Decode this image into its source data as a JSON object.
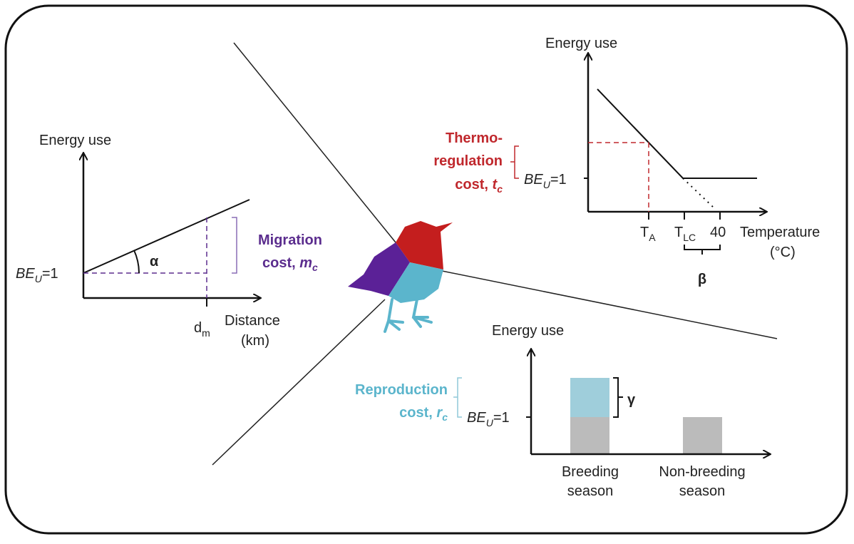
{
  "migration": {
    "y_label": "Energy use",
    "baseline": {
      "be": "BE",
      "sub": "U",
      "eq": "=1"
    },
    "angle": "α",
    "x_tick": {
      "main": "d",
      "sub": "m"
    },
    "x_label": [
      "Distance",
      "(km)"
    ],
    "cost": {
      "line1": "Migration",
      "line2": "cost,",
      "var": "m",
      "sub": "c"
    }
  },
  "thermo": {
    "y_label": "Energy use",
    "baseline": {
      "be": "BE",
      "sub": "U",
      "eq": "=1"
    },
    "x_ticks": [
      {
        "main": "T",
        "sub": "A"
      },
      {
        "main": "T",
        "sub": "LC"
      },
      {
        "main": "40"
      }
    ],
    "bracket": "β",
    "x_label": [
      "Temperature",
      "(°C)"
    ],
    "cost": {
      "line1": "Thermo-",
      "line2": "regulation",
      "line3": "cost,",
      "var": "t",
      "sub": "c"
    }
  },
  "reproduction": {
    "y_label": "Energy use",
    "baseline": {
      "be": "BE",
      "sub": "U",
      "eq": "=1"
    },
    "bracket": "γ",
    "categories": [
      [
        "Breeding",
        "season"
      ],
      [
        "Non-breeding",
        "season"
      ]
    ],
    "cost": {
      "line1": "Reproduction",
      "line2": "cost,",
      "var": "r",
      "sub": "c"
    }
  }
}
